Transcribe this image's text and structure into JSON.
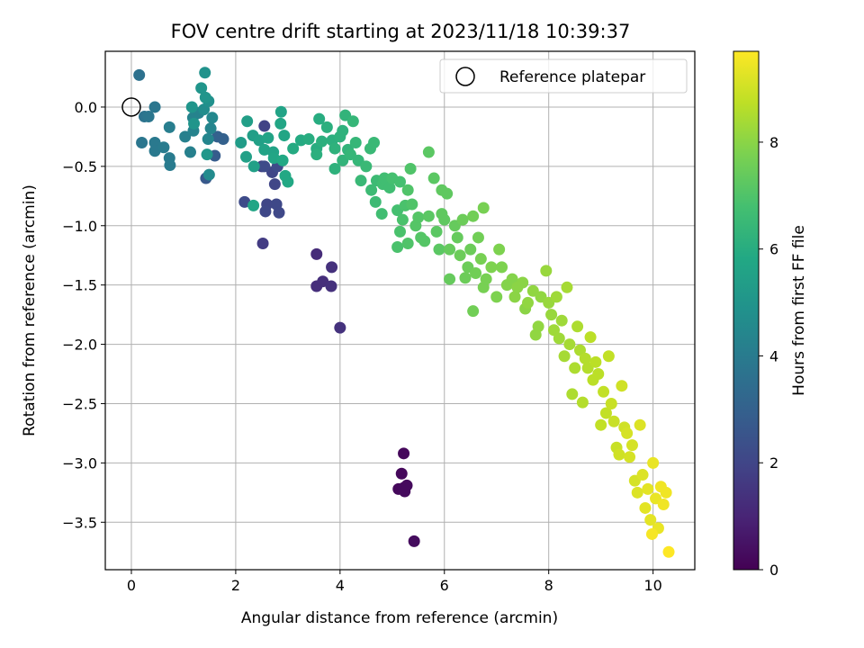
{
  "chart_data": {
    "type": "scatter",
    "title": "FOV centre drift starting at 2023/11/18 10:39:37",
    "xlabel": "Angular distance from reference (arcmin)",
    "ylabel": "Rotation from reference (arcmin)",
    "xlim": [
      -0.5,
      10.8
    ],
    "ylim": [
      -3.9,
      0.47
    ],
    "xticks": [
      0,
      2,
      4,
      6,
      8,
      10
    ],
    "yticks": [
      0.0,
      -0.5,
      -1.0,
      -1.5,
      -2.0,
      -2.5,
      -3.0,
      -3.5
    ],
    "xtick_labels": [
      "0",
      "2",
      "4",
      "6",
      "8",
      "10"
    ],
    "ytick_labels": [
      "0.0",
      "−0.5",
      "−1.0",
      "−1.5",
      "−2.0",
      "−2.5",
      "−3.0",
      "−3.5"
    ],
    "grid": true,
    "legend": {
      "position": "upper-right",
      "entries": [
        "Reference platepar"
      ]
    },
    "reference_point": {
      "x": 0.0,
      "y": 0.0
    },
    "colorbar": {
      "label": "Hours from first FF file",
      "range": [
        0,
        9.7
      ],
      "ticks": [
        0,
        2,
        4,
        6,
        8
      ],
      "tick_labels": [
        "0",
        "2",
        "4",
        "6",
        "8"
      ],
      "colormap": "viridis"
    },
    "points": [
      {
        "x": 5.22,
        "y": -2.92,
        "t": 0.2
      },
      {
        "x": 5.18,
        "y": -3.09,
        "t": 0.2
      },
      {
        "x": 5.12,
        "y": -3.22,
        "t": 0.2
      },
      {
        "x": 5.22,
        "y": -3.21,
        "t": 0.25
      },
      {
        "x": 5.28,
        "y": -3.19,
        "t": 0.25
      },
      {
        "x": 5.24,
        "y": -3.24,
        "t": 0.25
      },
      {
        "x": 5.42,
        "y": -3.66,
        "t": 0.3
      },
      {
        "x": 3.55,
        "y": -1.24,
        "t": 1.2
      },
      {
        "x": 3.55,
        "y": -1.51,
        "t": 1.3
      },
      {
        "x": 3.67,
        "y": -1.47,
        "t": 1.3
      },
      {
        "x": 3.84,
        "y": -1.35,
        "t": 1.35
      },
      {
        "x": 3.83,
        "y": -1.51,
        "t": 1.35
      },
      {
        "x": 4.0,
        "y": -1.86,
        "t": 1.4
      },
      {
        "x": 2.52,
        "y": -1.15,
        "t": 1.7
      },
      {
        "x": 2.5,
        "y": -0.5,
        "t": 1.8
      },
      {
        "x": 2.55,
        "y": -0.16,
        "t": 1.9
      },
      {
        "x": 2.7,
        "y": -0.55,
        "t": 2.0
      },
      {
        "x": 2.75,
        "y": -0.65,
        "t": 2.0
      },
      {
        "x": 2.6,
        "y": -0.82,
        "t": 2.0
      },
      {
        "x": 2.57,
        "y": -0.88,
        "t": 2.1
      },
      {
        "x": 2.78,
        "y": -0.82,
        "t": 2.1
      },
      {
        "x": 2.83,
        "y": -0.89,
        "t": 2.1
      },
      {
        "x": 2.17,
        "y": -0.8,
        "t": 2.2
      },
      {
        "x": 2.55,
        "y": -0.5,
        "t": 2.2
      },
      {
        "x": 2.8,
        "y": -0.5,
        "t": 2.2
      },
      {
        "x": 1.43,
        "y": -0.6,
        "t": 2.7
      },
      {
        "x": 1.6,
        "y": -0.41,
        "t": 2.8
      },
      {
        "x": 1.76,
        "y": -0.27,
        "t": 3.0
      },
      {
        "x": 1.65,
        "y": -0.25,
        "t": 3.0
      },
      {
        "x": 0.15,
        "y": 0.27,
        "t": 3.6
      },
      {
        "x": 0.25,
        "y": -0.08,
        "t": 3.7
      },
      {
        "x": 0.33,
        "y": -0.08,
        "t": 3.8
      },
      {
        "x": 0.45,
        "y": -0.0,
        "t": 3.8
      },
      {
        "x": 0.2,
        "y": -0.3,
        "t": 3.8
      },
      {
        "x": 0.45,
        "y": -0.3,
        "t": 3.9
      },
      {
        "x": 0.45,
        "y": -0.37,
        "t": 3.9
      },
      {
        "x": 0.62,
        "y": -0.34,
        "t": 4.0
      },
      {
        "x": 0.73,
        "y": -0.43,
        "t": 4.0
      },
      {
        "x": 0.74,
        "y": -0.49,
        "t": 4.0
      },
      {
        "x": 0.73,
        "y": -0.17,
        "t": 4.1
      },
      {
        "x": 1.03,
        "y": -0.25,
        "t": 4.2
      },
      {
        "x": 1.13,
        "y": -0.38,
        "t": 4.2
      },
      {
        "x": 1.19,
        "y": -0.2,
        "t": 4.3
      },
      {
        "x": 1.18,
        "y": -0.09,
        "t": 4.3
      },
      {
        "x": 1.29,
        "y": -0.05,
        "t": 4.3
      },
      {
        "x": 1.47,
        "y": -0.27,
        "t": 4.4
      },
      {
        "x": 1.52,
        "y": -0.18,
        "t": 4.4
      },
      {
        "x": 1.55,
        "y": -0.09,
        "t": 4.5
      },
      {
        "x": 1.49,
        "y": -0.57,
        "t": 4.6
      },
      {
        "x": 1.39,
        "y": -0.02,
        "t": 4.7
      },
      {
        "x": 1.48,
        "y": 0.05,
        "t": 4.8
      },
      {
        "x": 1.41,
        "y": 0.29,
        "t": 4.9
      },
      {
        "x": 1.34,
        "y": 0.16,
        "t": 5.0
      },
      {
        "x": 1.16,
        "y": 0.0,
        "t": 5.0
      },
      {
        "x": 1.2,
        "y": -0.14,
        "t": 5.0
      },
      {
        "x": 1.42,
        "y": 0.08,
        "t": 5.0
      },
      {
        "x": 1.45,
        "y": -0.4,
        "t": 5.1
      },
      {
        "x": 2.1,
        "y": -0.3,
        "t": 5.3
      },
      {
        "x": 2.22,
        "y": -0.12,
        "t": 5.4
      },
      {
        "x": 2.33,
        "y": -0.24,
        "t": 5.4
      },
      {
        "x": 2.2,
        "y": -0.42,
        "t": 5.5
      },
      {
        "x": 2.35,
        "y": -0.5,
        "t": 5.5
      },
      {
        "x": 2.45,
        "y": -0.28,
        "t": 5.5
      },
      {
        "x": 2.55,
        "y": -0.36,
        "t": 5.6
      },
      {
        "x": 2.62,
        "y": -0.26,
        "t": 5.6
      },
      {
        "x": 2.72,
        "y": -0.38,
        "t": 5.6
      },
      {
        "x": 2.87,
        "y": -0.04,
        "t": 5.6
      },
      {
        "x": 2.86,
        "y": -0.14,
        "t": 5.7
      },
      {
        "x": 2.93,
        "y": -0.24,
        "t": 5.7
      },
      {
        "x": 2.34,
        "y": -0.83,
        "t": 5.7
      },
      {
        "x": 2.73,
        "y": -0.43,
        "t": 5.7
      },
      {
        "x": 2.9,
        "y": -0.45,
        "t": 5.8
      },
      {
        "x": 2.95,
        "y": -0.58,
        "t": 5.8
      },
      {
        "x": 3.0,
        "y": -0.63,
        "t": 5.8
      },
      {
        "x": 3.1,
        "y": -0.35,
        "t": 5.9
      },
      {
        "x": 3.25,
        "y": -0.28,
        "t": 5.9
      },
      {
        "x": 3.4,
        "y": -0.27,
        "t": 6.0
      },
      {
        "x": 3.55,
        "y": -0.35,
        "t": 6.0
      },
      {
        "x": 3.6,
        "y": -0.1,
        "t": 6.0
      },
      {
        "x": 3.55,
        "y": -0.4,
        "t": 6.1
      },
      {
        "x": 3.65,
        "y": -0.29,
        "t": 6.1
      },
      {
        "x": 3.75,
        "y": -0.17,
        "t": 6.1
      },
      {
        "x": 3.85,
        "y": -0.28,
        "t": 6.1
      },
      {
        "x": 3.9,
        "y": -0.35,
        "t": 6.2
      },
      {
        "x": 3.9,
        "y": -0.52,
        "t": 6.2
      },
      {
        "x": 4.0,
        "y": -0.25,
        "t": 6.2
      },
      {
        "x": 4.05,
        "y": -0.2,
        "t": 6.2
      },
      {
        "x": 4.05,
        "y": -0.45,
        "t": 6.3
      },
      {
        "x": 4.1,
        "y": -0.07,
        "t": 6.3
      },
      {
        "x": 4.15,
        "y": -0.36,
        "t": 6.3
      },
      {
        "x": 4.2,
        "y": -0.4,
        "t": 6.4
      },
      {
        "x": 4.25,
        "y": -0.12,
        "t": 6.4
      },
      {
        "x": 4.3,
        "y": -0.3,
        "t": 6.4
      },
      {
        "x": 4.35,
        "y": -0.45,
        "t": 6.4
      },
      {
        "x": 4.4,
        "y": -0.62,
        "t": 6.5
      },
      {
        "x": 4.5,
        "y": -0.5,
        "t": 6.5
      },
      {
        "x": 4.58,
        "y": -0.35,
        "t": 6.5
      },
      {
        "x": 4.65,
        "y": -0.3,
        "t": 6.5
      },
      {
        "x": 4.6,
        "y": -0.7,
        "t": 6.6
      },
      {
        "x": 4.68,
        "y": -0.8,
        "t": 6.6
      },
      {
        "x": 4.7,
        "y": -0.62,
        "t": 6.6
      },
      {
        "x": 4.82,
        "y": -0.65,
        "t": 6.7
      },
      {
        "x": 4.85,
        "y": -0.6,
        "t": 6.7
      },
      {
        "x": 4.95,
        "y": -0.68,
        "t": 6.7
      },
      {
        "x": 4.8,
        "y": -0.9,
        "t": 6.7
      },
      {
        "x": 5.0,
        "y": -0.6,
        "t": 6.8
      },
      {
        "x": 5.1,
        "y": -0.87,
        "t": 6.8
      },
      {
        "x": 5.15,
        "y": -0.63,
        "t": 6.8
      },
      {
        "x": 5.2,
        "y": -0.95,
        "t": 6.9
      },
      {
        "x": 5.15,
        "y": -1.05,
        "t": 6.9
      },
      {
        "x": 5.1,
        "y": -1.18,
        "t": 6.9
      },
      {
        "x": 5.25,
        "y": -0.83,
        "t": 6.9
      },
      {
        "x": 5.3,
        "y": -0.7,
        "t": 7.0
      },
      {
        "x": 5.35,
        "y": -0.52,
        "t": 7.0
      },
      {
        "x": 5.3,
        "y": -1.15,
        "t": 7.0
      },
      {
        "x": 5.38,
        "y": -0.82,
        "t": 7.0
      },
      {
        "x": 5.45,
        "y": -1.0,
        "t": 7.1
      },
      {
        "x": 5.5,
        "y": -0.93,
        "t": 7.1
      },
      {
        "x": 5.55,
        "y": -1.1,
        "t": 7.1
      },
      {
        "x": 5.62,
        "y": -1.13,
        "t": 7.1
      },
      {
        "x": 5.7,
        "y": -0.38,
        "t": 7.2
      },
      {
        "x": 5.7,
        "y": -0.92,
        "t": 7.2
      },
      {
        "x": 5.8,
        "y": -0.6,
        "t": 7.2
      },
      {
        "x": 5.85,
        "y": -1.05,
        "t": 7.2
      },
      {
        "x": 5.9,
        "y": -1.2,
        "t": 7.2
      },
      {
        "x": 5.95,
        "y": -0.9,
        "t": 7.3
      },
      {
        "x": 5.95,
        "y": -0.7,
        "t": 7.3
      },
      {
        "x": 6.0,
        "y": -0.95,
        "t": 7.3
      },
      {
        "x": 6.05,
        "y": -0.73,
        "t": 7.3
      },
      {
        "x": 6.1,
        "y": -1.2,
        "t": 7.4
      },
      {
        "x": 6.1,
        "y": -1.45,
        "t": 7.4
      },
      {
        "x": 6.2,
        "y": -1.0,
        "t": 7.4
      },
      {
        "x": 6.25,
        "y": -1.1,
        "t": 7.4
      },
      {
        "x": 6.3,
        "y": -1.25,
        "t": 7.5
      },
      {
        "x": 6.35,
        "y": -0.95,
        "t": 7.5
      },
      {
        "x": 6.4,
        "y": -1.44,
        "t": 7.5
      },
      {
        "x": 6.45,
        "y": -1.35,
        "t": 7.5
      },
      {
        "x": 6.5,
        "y": -1.2,
        "t": 7.5
      },
      {
        "x": 6.55,
        "y": -0.92,
        "t": 7.6
      },
      {
        "x": 6.55,
        "y": -1.72,
        "t": 7.6
      },
      {
        "x": 6.6,
        "y": -1.4,
        "t": 7.6
      },
      {
        "x": 6.65,
        "y": -1.1,
        "t": 7.6
      },
      {
        "x": 6.7,
        "y": -1.28,
        "t": 7.7
      },
      {
        "x": 6.75,
        "y": -0.85,
        "t": 7.7
      },
      {
        "x": 6.75,
        "y": -1.52,
        "t": 7.7
      },
      {
        "x": 6.8,
        "y": -1.45,
        "t": 7.7
      },
      {
        "x": 6.9,
        "y": -1.35,
        "t": 7.8
      },
      {
        "x": 7.0,
        "y": -1.6,
        "t": 7.8
      },
      {
        "x": 7.05,
        "y": -1.2,
        "t": 7.8
      },
      {
        "x": 7.1,
        "y": -1.35,
        "t": 7.8
      },
      {
        "x": 7.2,
        "y": -1.5,
        "t": 7.9
      },
      {
        "x": 7.3,
        "y": -1.45,
        "t": 7.9
      },
      {
        "x": 7.35,
        "y": -1.6,
        "t": 8.0
      },
      {
        "x": 7.4,
        "y": -1.52,
        "t": 8.0
      },
      {
        "x": 7.5,
        "y": -1.48,
        "t": 8.0
      },
      {
        "x": 7.55,
        "y": -1.7,
        "t": 8.0
      },
      {
        "x": 7.6,
        "y": -1.65,
        "t": 8.1
      },
      {
        "x": 7.7,
        "y": -1.55,
        "t": 8.1
      },
      {
        "x": 7.75,
        "y": -1.92,
        "t": 8.1
      },
      {
        "x": 7.8,
        "y": -1.85,
        "t": 8.1
      },
      {
        "x": 7.85,
        "y": -1.6,
        "t": 8.1
      },
      {
        "x": 7.95,
        "y": -1.38,
        "t": 8.2
      },
      {
        "x": 8.0,
        "y": -1.65,
        "t": 8.2
      },
      {
        "x": 8.05,
        "y": -1.75,
        "t": 8.2
      },
      {
        "x": 8.1,
        "y": -1.88,
        "t": 8.3
      },
      {
        "x": 8.15,
        "y": -1.6,
        "t": 8.3
      },
      {
        "x": 8.2,
        "y": -1.95,
        "t": 8.3
      },
      {
        "x": 8.25,
        "y": -1.8,
        "t": 8.3
      },
      {
        "x": 8.3,
        "y": -2.1,
        "t": 8.4
      },
      {
        "x": 8.35,
        "y": -1.52,
        "t": 8.4
      },
      {
        "x": 8.4,
        "y": -2.0,
        "t": 8.4
      },
      {
        "x": 8.45,
        "y": -2.42,
        "t": 8.5
      },
      {
        "x": 8.5,
        "y": -2.2,
        "t": 8.5
      },
      {
        "x": 8.55,
        "y": -1.85,
        "t": 8.5
      },
      {
        "x": 8.6,
        "y": -2.05,
        "t": 8.5
      },
      {
        "x": 8.65,
        "y": -2.49,
        "t": 8.6
      },
      {
        "x": 8.7,
        "y": -2.12,
        "t": 8.6
      },
      {
        "x": 8.75,
        "y": -2.2,
        "t": 8.6
      },
      {
        "x": 8.8,
        "y": -1.94,
        "t": 8.7
      },
      {
        "x": 8.85,
        "y": -2.3,
        "t": 8.7
      },
      {
        "x": 8.9,
        "y": -2.15,
        "t": 8.7
      },
      {
        "x": 8.95,
        "y": -2.25,
        "t": 8.7
      },
      {
        "x": 9.0,
        "y": -2.68,
        "t": 8.8
      },
      {
        "x": 9.05,
        "y": -2.4,
        "t": 8.8
      },
      {
        "x": 9.1,
        "y": -2.58,
        "t": 8.8
      },
      {
        "x": 9.15,
        "y": -2.1,
        "t": 8.8
      },
      {
        "x": 9.2,
        "y": -2.5,
        "t": 8.9
      },
      {
        "x": 9.25,
        "y": -2.65,
        "t": 8.9
      },
      {
        "x": 9.3,
        "y": -2.87,
        "t": 8.9
      },
      {
        "x": 9.35,
        "y": -2.93,
        "t": 9.0
      },
      {
        "x": 9.4,
        "y": -2.35,
        "t": 9.0
      },
      {
        "x": 9.45,
        "y": -2.7,
        "t": 9.0
      },
      {
        "x": 9.5,
        "y": -2.75,
        "t": 9.1
      },
      {
        "x": 9.55,
        "y": -2.95,
        "t": 9.1
      },
      {
        "x": 9.6,
        "y": -2.85,
        "t": 9.1
      },
      {
        "x": 9.65,
        "y": -3.15,
        "t": 9.1
      },
      {
        "x": 9.7,
        "y": -3.25,
        "t": 9.2
      },
      {
        "x": 9.75,
        "y": -2.68,
        "t": 9.2
      },
      {
        "x": 9.8,
        "y": -3.1,
        "t": 9.2
      },
      {
        "x": 9.85,
        "y": -3.38,
        "t": 9.3
      },
      {
        "x": 9.9,
        "y": -3.22,
        "t": 9.3
      },
      {
        "x": 9.95,
        "y": -3.48,
        "t": 9.3
      },
      {
        "x": 10.0,
        "y": -3.0,
        "t": 9.4
      },
      {
        "x": 10.05,
        "y": -3.3,
        "t": 9.4
      },
      {
        "x": 10.1,
        "y": -3.55,
        "t": 9.4
      },
      {
        "x": 10.15,
        "y": -3.2,
        "t": 9.5
      },
      {
        "x": 10.2,
        "y": -3.35,
        "t": 9.5
      },
      {
        "x": 10.25,
        "y": -3.25,
        "t": 9.5
      },
      {
        "x": 9.98,
        "y": -3.6,
        "t": 9.6
      },
      {
        "x": 10.3,
        "y": -3.75,
        "t": 9.7
      }
    ]
  }
}
